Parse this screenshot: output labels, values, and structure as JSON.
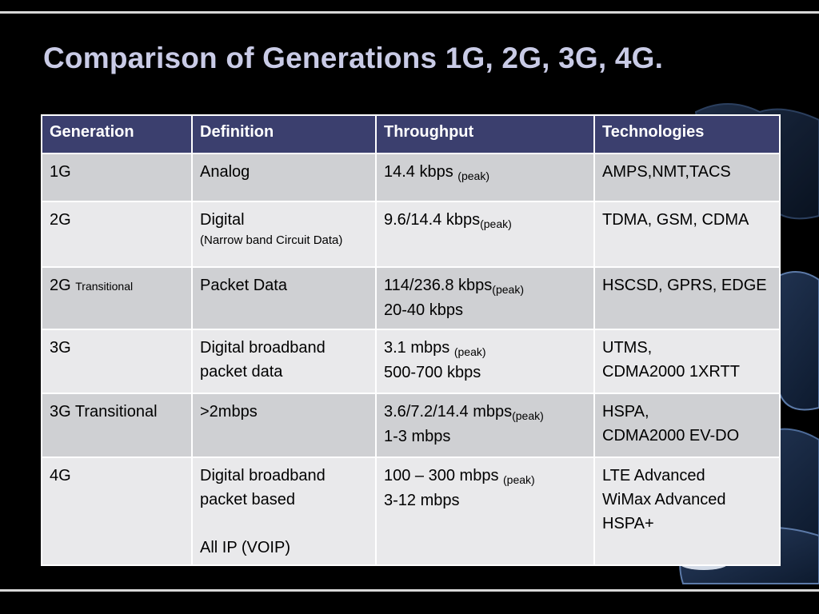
{
  "slide": {
    "title": "Comparison of Generations 1G, 2G, 3G, 4G."
  },
  "table": {
    "headers": [
      "Generation",
      "Definition",
      "Throughput",
      "Technologies"
    ],
    "rows": [
      {
        "generation": "1G",
        "generation_note": "",
        "definition": [
          "Analog"
        ],
        "definition_note": "",
        "throughput_peak": "14.4 kbps",
        "peak_label": "(peak)",
        "throughput_typical": "",
        "technologies": [
          "AMPS,NMT,TACS"
        ]
      },
      {
        "generation": "2G",
        "generation_note": "",
        "definition": [
          "Digital"
        ],
        "definition_note": "(Narrow band Circuit Data)",
        "throughput_peak": "9.6/14.4 kbps",
        "peak_label": "(peak)",
        "throughput_typical": "",
        "technologies": [
          "TDMA, GSM, CDMA"
        ]
      },
      {
        "generation": "2G",
        "generation_note": "Transitional",
        "definition": [
          "Packet Data"
        ],
        "definition_note": "",
        "throughput_peak": "114/236.8 kbps",
        "peak_label": "(peak)",
        "throughput_typical": "20-40 kbps",
        "technologies": [
          "HSCSD, GPRS, EDGE"
        ]
      },
      {
        "generation": "3G",
        "generation_note": "",
        "definition": [
          "Digital broadband",
          "packet data"
        ],
        "definition_note": "",
        "throughput_peak": "3.1 mbps",
        "peak_label": "(peak)",
        "throughput_typical": "500-700 kbps",
        "technologies": [
          "UTMS,",
          "CDMA2000 1XRTT"
        ]
      },
      {
        "generation": "3G Transitional",
        "generation_note": "",
        "definition": [
          ">2mbps"
        ],
        "definition_note": "",
        "throughput_peak": "3.6/7.2/14.4 mbps",
        "peak_label": "(peak)",
        "throughput_typical": "1-3 mbps",
        "technologies": [
          "HSPA,",
          "CDMA2000 EV-DO"
        ]
      },
      {
        "generation": "4G",
        "generation_note": "",
        "definition": [
          "Digital broadband",
          "packet based",
          "",
          "All IP (VOIP)"
        ],
        "definition_note": "",
        "throughput_peak": "100 – 300 mbps",
        "peak_label": "(peak)",
        "throughput_typical": "3-12 mbps",
        "technologies": [
          "LTE Advanced",
          "WiMax Advanced",
          "HSPA+"
        ]
      }
    ]
  },
  "colors": {
    "background": "#000000",
    "title": "#c9cbe6",
    "header_fill": "#3b3f6e",
    "row_odd": "#cfd0d3",
    "row_even": "#e9e9eb",
    "rules": "#d8d8d8"
  },
  "decor": {
    "background_icon": "puzzle-pieces-icon"
  }
}
